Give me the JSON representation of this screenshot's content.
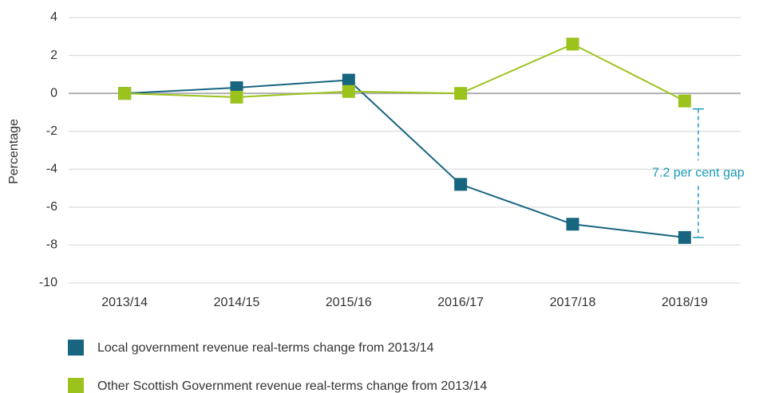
{
  "chart_data": {
    "type": "line",
    "y_label": "Percentage",
    "categories": [
      "2013/14",
      "2014/15",
      "2015/16",
      "2016/17",
      "2017/18",
      "2018/19"
    ],
    "series": [
      {
        "name": "Local government revenue real-terms change from 2013/14",
        "color": "#17657f",
        "values": [
          0,
          0.3,
          0.7,
          -4.8,
          -6.9,
          -7.6
        ]
      },
      {
        "name": "Other Scottish Government revenue real-terms change from 2013/14",
        "color": "#9bc31c",
        "values": [
          0,
          -0.2,
          0.1,
          0,
          2.6,
          -0.4
        ]
      }
    ],
    "annotation": "7.2 per cent gap",
    "annotation_color": "#1a9bb5",
    "ylim": [
      -10,
      4
    ],
    "yticks": [
      -10,
      -8,
      -6,
      -4,
      -2,
      0,
      2,
      4
    ],
    "grid": true
  }
}
